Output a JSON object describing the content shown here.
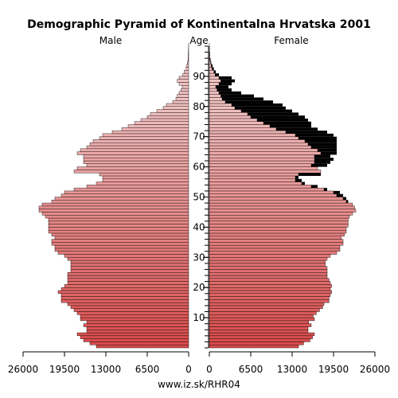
{
  "chart_data": {
    "type": "bar",
    "title": "Demographic Pyramid of Kontinentalna Hrvatska 2001",
    "left_label": "Male",
    "center_label": "Age",
    "right_label": "Female",
    "source": "www.iz.sk/RHR04",
    "x_ticks_male": [
      "26000",
      "19500",
      "13000",
      "6500",
      "0"
    ],
    "x_ticks_female": [
      "0",
      "6500",
      "13000",
      "19500",
      "26000"
    ],
    "x_range": [
      0,
      26000
    ],
    "age_ticks": [
      "10",
      "20",
      "30",
      "40",
      "50",
      "60",
      "70",
      "80",
      "90"
    ],
    "age_range": [
      0,
      100
    ],
    "colors": {
      "young": "#d94a4a",
      "old": "#f0c0c0",
      "excess": "#000000",
      "outline": "#000000"
    },
    "series": [
      {
        "name": "Male",
        "ages": [
          0,
          1,
          2,
          3,
          4,
          5,
          6,
          7,
          8,
          9,
          10,
          11,
          12,
          13,
          14,
          15,
          16,
          17,
          18,
          19,
          20,
          21,
          22,
          23,
          24,
          25,
          26,
          27,
          28,
          29,
          30,
          31,
          32,
          33,
          34,
          35,
          36,
          37,
          38,
          39,
          40,
          41,
          42,
          43,
          44,
          45,
          46,
          47,
          48,
          49,
          50,
          51,
          52,
          53,
          54,
          55,
          56,
          57,
          58,
          59,
          60,
          61,
          62,
          63,
          64,
          65,
          66,
          67,
          68,
          69,
          70,
          71,
          72,
          73,
          74,
          75,
          76,
          77,
          78,
          79,
          80,
          81,
          82,
          83,
          84,
          85,
          86,
          87,
          88,
          89,
          90,
          91,
          92,
          93,
          94,
          95,
          96,
          97,
          98,
          99,
          100
        ],
        "values": [
          14500,
          15500,
          16500,
          17000,
          17500,
          16000,
          16000,
          16500,
          16000,
          17000,
          17000,
          17500,
          18000,
          18500,
          19000,
          20000,
          20000,
          20000,
          20500,
          20000,
          19500,
          19000,
          19000,
          19000,
          19000,
          18500,
          18500,
          18500,
          18500,
          19000,
          19500,
          20500,
          21000,
          21000,
          21500,
          21500,
          21000,
          21500,
          22000,
          22000,
          22000,
          22000,
          22000,
          22500,
          23000,
          23500,
          23500,
          23000,
          21500,
          21000,
          20000,
          19500,
          18000,
          16000,
          14500,
          13500,
          13500,
          14000,
          18000,
          17500,
          16000,
          16500,
          16500,
          16500,
          17500,
          17000,
          16000,
          15500,
          15000,
          14000,
          13500,
          12000,
          10500,
          9500,
          8500,
          7500,
          6500,
          6000,
          5000,
          4000,
          3500,
          2500,
          2000,
          1800,
          1500,
          1200,
          1000,
          1500,
          1800,
          1500,
          900,
          700,
          400,
          300,
          200,
          100,
          80,
          50,
          30,
          20,
          10
        ]
      },
      {
        "name": "Female",
        "ages": [
          0,
          1,
          2,
          3,
          4,
          5,
          6,
          7,
          8,
          9,
          10,
          11,
          12,
          13,
          14,
          15,
          16,
          17,
          18,
          19,
          20,
          21,
          22,
          23,
          24,
          25,
          26,
          27,
          28,
          29,
          30,
          31,
          32,
          33,
          34,
          35,
          36,
          37,
          38,
          39,
          40,
          41,
          42,
          43,
          44,
          45,
          46,
          47,
          48,
          49,
          50,
          51,
          52,
          53,
          54,
          55,
          56,
          57,
          58,
          59,
          60,
          61,
          62,
          63,
          64,
          65,
          66,
          67,
          68,
          69,
          70,
          71,
          72,
          73,
          74,
          75,
          76,
          77,
          78,
          79,
          80,
          81,
          82,
          83,
          84,
          85,
          86,
          87,
          88,
          89,
          90,
          91,
          92,
          93,
          94,
          95,
          96,
          97,
          98,
          99,
          100
        ],
        "values": [
          14000,
          14800,
          15800,
          16200,
          16500,
          15500,
          15500,
          16000,
          15600,
          16500,
          16300,
          16800,
          17300,
          17800,
          18000,
          18800,
          18800,
          19000,
          19200,
          19000,
          19200,
          19000,
          18800,
          18500,
          18500,
          18500,
          18500,
          18200,
          18200,
          18500,
          19000,
          20000,
          20500,
          20500,
          21000,
          21000,
          20700,
          21200,
          21500,
          21500,
          21800,
          21800,
          21800,
          22000,
          22500,
          23000,
          22800,
          22500,
          21800,
          21500,
          21000,
          20500,
          18500,
          17000,
          15000,
          14500,
          14000,
          17500,
          17500,
          17000,
          18500,
          19000,
          19500,
          19000,
          20000,
          20000,
          20000,
          20000,
          20000,
          20000,
          19500,
          18500,
          17000,
          16000,
          16000,
          15500,
          15000,
          14000,
          13000,
          12000,
          11500,
          10000,
          8500,
          7000,
          5000,
          3500,
          3000,
          3500,
          4000,
          3500,
          1500,
          1000,
          700,
          500,
          300,
          200,
          120,
          80,
          50,
          30,
          10
        ]
      }
    ],
    "overlay": [
      {
        "name": "Female excess",
        "ages": [
          38,
          39,
          40,
          41,
          42,
          43,
          44,
          45,
          46,
          47,
          48,
          49,
          50,
          51,
          52,
          53,
          54,
          55,
          56,
          57,
          58,
          59,
          60,
          61,
          62,
          63,
          64,
          65,
          66,
          67,
          68,
          69,
          70,
          71,
          72,
          73,
          74,
          75,
          76,
          77,
          78,
          79,
          80,
          81,
          82,
          83,
          84,
          85,
          86,
          87,
          88,
          89,
          90,
          91,
          92,
          93,
          94,
          95,
          96,
          97,
          98,
          99,
          100
        ],
        "female_values": [
          0,
          0,
          0,
          0,
          0,
          0,
          0,
          0,
          0,
          0,
          0,
          0,
          21000,
          20500,
          18500,
          17000,
          15000,
          14500,
          14000,
          17500,
          17500,
          17000,
          18500,
          19000,
          19500,
          19000,
          20000,
          20000,
          20000,
          20000,
          20000,
          20000,
          19500,
          18500,
          17000,
          16000,
          16000,
          15500,
          15000,
          14000,
          13000,
          12000,
          11500,
          10000,
          8500,
          7000,
          5000,
          3500,
          3000,
          3500,
          4000,
          3500,
          1500,
          1000,
          700,
          500,
          300,
          200,
          120,
          80,
          50,
          30,
          10
        ]
      }
    ]
  }
}
